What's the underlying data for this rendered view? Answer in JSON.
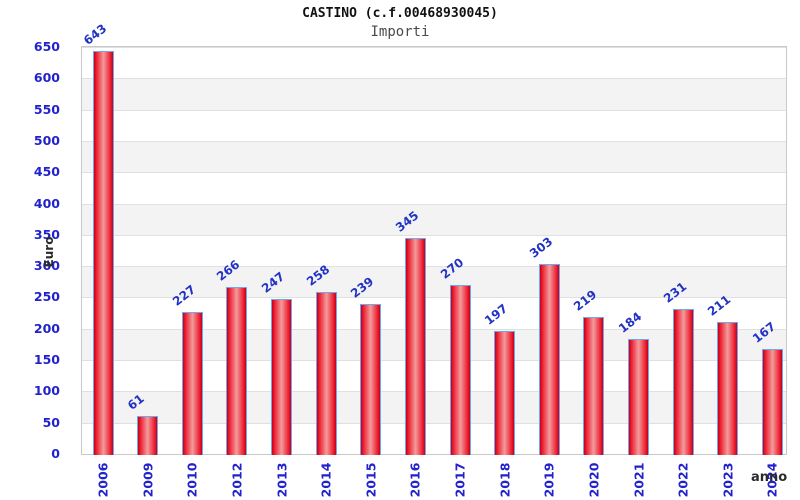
{
  "header": {
    "title": "CASTINO (c.f.00468930045)",
    "subtitle": "Importi"
  },
  "axes": {
    "y_label": "Euro",
    "x_label": "anno"
  },
  "chart_data": {
    "type": "bar",
    "title": "CASTINO (c.f.00468930045)",
    "subtitle": "Importi",
    "xlabel": "anno",
    "ylabel": "Euro",
    "categories": [
      "2006",
      "2009",
      "2010",
      "2012",
      "2013",
      "2014",
      "2015",
      "2016",
      "2017",
      "2018",
      "2019",
      "2020",
      "2021",
      "2022",
      "2023",
      "2024"
    ],
    "values": [
      643,
      61,
      227,
      266,
      247,
      258,
      239,
      345,
      270,
      197,
      303,
      219,
      184,
      231,
      211,
      167
    ],
    "ylim": [
      0,
      650
    ],
    "ytick_step": 50,
    "yticks": [
      0,
      50,
      100,
      150,
      200,
      250,
      300,
      350,
      400,
      450,
      500,
      550,
      600,
      650
    ],
    "grid": "horizontal-bands",
    "legend": "none",
    "colors": {
      "bar_edge": "#c40018",
      "bar_mid": "#ee2233",
      "bar_center": "#f29c9c",
      "bar_border": "#6fa8ef",
      "value_label": "#2233c4",
      "tick_label": "#2222cc",
      "band_gray": "#f3f3f3",
      "band_white": "#ffffff",
      "gridline": "#e0e0e0",
      "plot_border": "#c9c9c9"
    }
  }
}
